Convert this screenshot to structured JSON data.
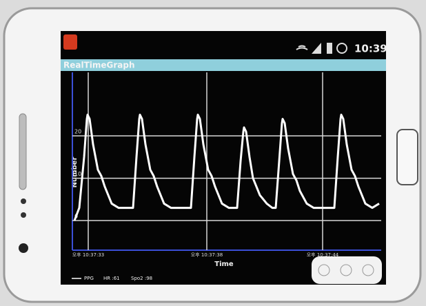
{
  "status_bar": {
    "time": "10:39"
  },
  "app": {
    "title": "RealTimeGraph"
  },
  "chart_data": {
    "type": "line",
    "y_label": "Number",
    "x_label": "Time",
    "xlim": [
      0,
      448
    ],
    "xticks": [
      {
        "value": 23,
        "label": "오후 10:37:33"
      },
      {
        "value": 195,
        "label": "오후 10:37:38"
      },
      {
        "value": 363,
        "label": "오후 10:37:44"
      }
    ],
    "ylim": [
      -7,
      35
    ],
    "yticks": [
      0,
      10,
      20
    ],
    "grid": true,
    "series": [
      {
        "name": "PPG",
        "color": "#ffffff",
        "x": [
          3,
          10,
          17,
          21,
          22,
          25,
          30,
          37,
          42,
          47,
          57,
          67,
          88,
          93,
          97,
          98,
          101,
          106,
          113,
          118,
          123,
          133,
          143,
          160,
          172,
          177,
          181,
          182,
          185,
          190,
          197,
          202,
          207,
          217,
          227,
          239,
          244,
          248,
          249,
          252,
          257,
          262,
          267,
          272,
          282,
          290,
          295,
          300,
          304,
          305,
          308,
          313,
          320,
          325,
          330,
          340,
          350,
          370,
          380,
          385,
          389,
          390,
          393,
          398,
          405,
          410,
          415,
          425,
          435,
          445
        ],
        "values": [
          0,
          3,
          15,
          24,
          25,
          24,
          18,
          12,
          10.5,
          8,
          4,
          3,
          3,
          15,
          24,
          25,
          24,
          18,
          12,
          10.5,
          8,
          4,
          3,
          3,
          3,
          15,
          24,
          25,
          24,
          18,
          12,
          10.5,
          8,
          4,
          3,
          3,
          14,
          21,
          22,
          21,
          15,
          10,
          8,
          6,
          4,
          3,
          3,
          14,
          23,
          24,
          23,
          17,
          11,
          9.5,
          7,
          4,
          3,
          3,
          3,
          15,
          24,
          25,
          24,
          18,
          12,
          10.5,
          8,
          4,
          3,
          4
        ]
      }
    ],
    "annotations": [
      "HR :61",
      "Spo2 :98"
    ]
  }
}
